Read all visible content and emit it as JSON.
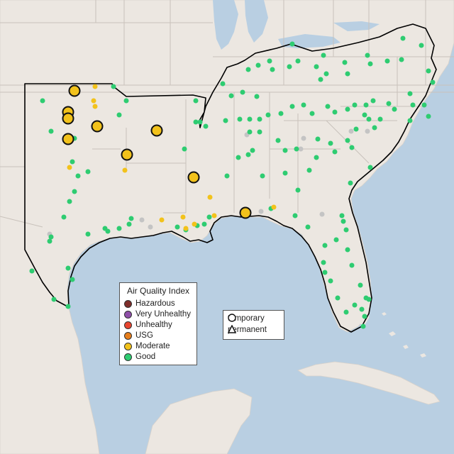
{
  "legend": {
    "title": "Air Quality Index",
    "categories": [
      {
        "label": "Hazardous",
        "color": "#7e2d2a"
      },
      {
        "label": "Very Unhealthy",
        "color": "#8f4fa8"
      },
      {
        "label": "Unhealthy",
        "color": "#e8452f"
      },
      {
        "label": "USG",
        "color": "#e67d1a"
      },
      {
        "label": "Moderate",
        "color": "#f2c21b"
      },
      {
        "label": "Good",
        "color": "#2ecc71"
      }
    ],
    "types": [
      {
        "label": "temporary",
        "symbol": "circle-icon"
      },
      {
        "label": "permanent",
        "symbol": "triangle-icon"
      }
    ]
  },
  "colors": {
    "ocean": "#b9cfe2",
    "land": "#ece7e1",
    "borders": "#c9c2bb",
    "region_outline": "#000000",
    "unknown_monitor": "#c4c4c4"
  }
}
